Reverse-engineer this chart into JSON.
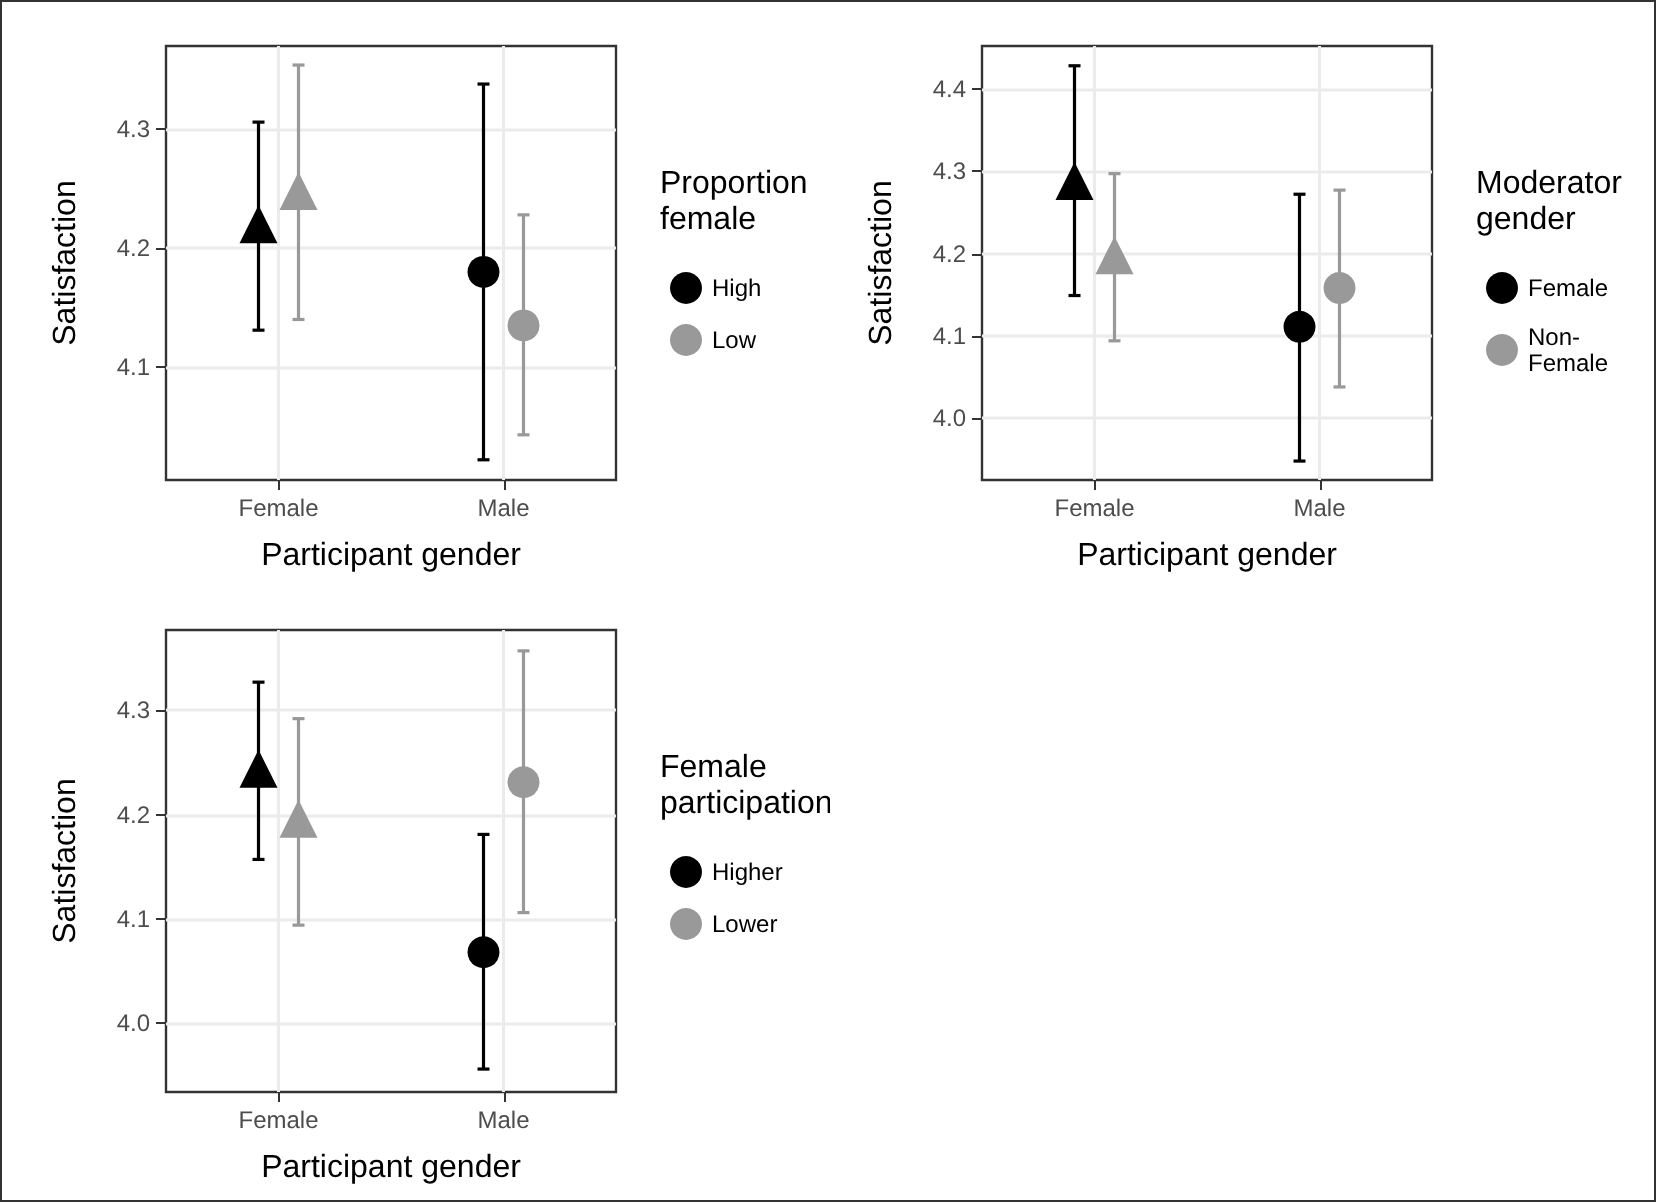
{
  "chart_data": [
    {
      "type": "scatter",
      "xlabel": "Participant gender",
      "ylabel": "Satisfaction",
      "legend_title": "Proportion female",
      "categories": [
        "Female",
        "Male"
      ],
      "marker": [
        "triangle",
        "circle"
      ],
      "ylim": [
        4.005,
        4.37
      ],
      "yticks": [
        4.1,
        4.2,
        4.3
      ],
      "grid": true,
      "legend": "right",
      "series": [
        {
          "name": "High",
          "color": "#000000",
          "values": [
            4.22,
            4.18
          ],
          "errors": [
            [
              4.131,
              4.306
            ],
            [
              4.022,
              4.338
            ]
          ]
        },
        {
          "name": "Low",
          "color": "#999999",
          "values": [
            4.248,
            4.135
          ],
          "errors": [
            [
              4.14,
              4.354
            ],
            [
              4.043,
              4.228
            ]
          ]
        }
      ]
    },
    {
      "type": "scatter",
      "xlabel": "Participant gender",
      "ylabel": "Satisfaction",
      "legend_title": "Moderator gender",
      "categories": [
        "Female",
        "Male"
      ],
      "marker": [
        "triangle",
        "circle"
      ],
      "ylim": [
        3.925,
        4.452
      ],
      "yticks": [
        {
          "value": 4.0,
          "label": "4.0"
        },
        4.1,
        4.2,
        4.3,
        4.4
      ],
      "grid": true,
      "legend": "right",
      "series": [
        {
          "name": "Female",
          "color": "#000000",
          "values": [
            4.288,
            4.111
          ],
          "errors": [
            [
              4.149,
              4.428
            ],
            [
              3.948,
              4.272
            ]
          ]
        },
        {
          "name": "Non-Female",
          "color": "#999999",
          "values": [
            4.198,
            4.158
          ],
          "errors": [
            [
              4.094,
              4.297
            ],
            [
              4.038,
              4.277
            ]
          ]
        }
      ]
    },
    {
      "type": "scatter",
      "xlabel": "Participant gender",
      "ylabel": "Satisfaction",
      "legend_title": "Female participation",
      "categories": [
        "Female",
        "Male"
      ],
      "marker": [
        "triangle",
        "circle"
      ],
      "ylim": [
        3.934,
        4.377
      ],
      "yticks": [
        {
          "value": 4.0,
          "label": "4.0"
        },
        4.1,
        4.2,
        4.3
      ],
      "grid": true,
      "legend": "right",
      "series": [
        {
          "name": "Higher",
          "color": "#000000",
          "values": [
            4.244,
            4.068
          ],
          "errors": [
            [
              4.157,
              4.327
            ],
            [
              3.956,
              4.181
            ]
          ]
        },
        {
          "name": "Lower",
          "color": "#999999",
          "values": [
            4.196,
            4.231
          ],
          "errors": [
            [
              4.094,
              4.292
            ],
            [
              4.106,
              4.357
            ]
          ]
        }
      ]
    }
  ]
}
